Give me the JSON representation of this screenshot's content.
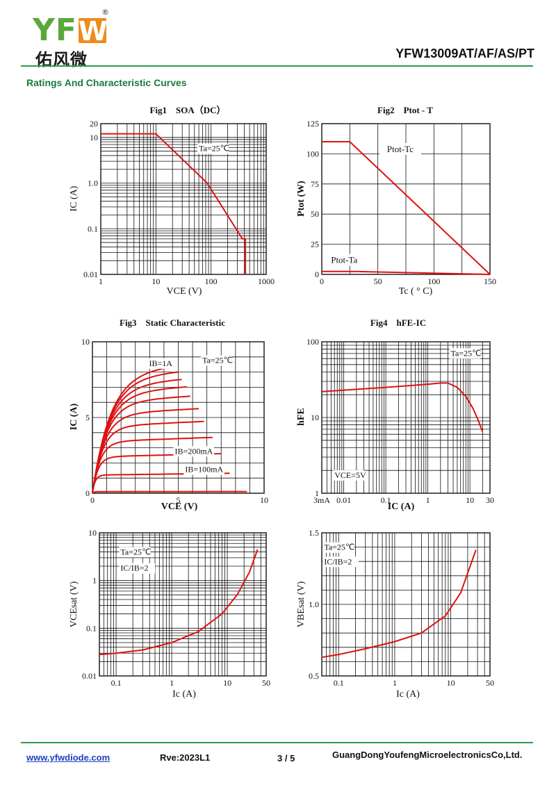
{
  "header": {
    "logo_text": "YFW",
    "logo_registered": "®",
    "logo_cn": "佑风微",
    "part_number": "YFW13009AT/AF/AS/PT",
    "section_title": "Ratings And Characteristic Curves"
  },
  "footer": {
    "website": "www.yfwdiode.com",
    "revision": "Rve:2023L1",
    "page": "3 / 5",
    "company": "GuangDongYoufengMicroelectronicsCo,Ltd."
  },
  "colors": {
    "curve": "#e01010",
    "grid": "#111111",
    "brand_green": "#2e9a4a",
    "brand_orange": "#f08a1c"
  },
  "chart_data": [
    {
      "id": "fig1",
      "type": "line",
      "title": "Fig1　SOA（DC）",
      "xlabel": "VCE (V)",
      "ylabel": "IC (A)",
      "xscale": "log",
      "yscale": "log",
      "xlim": [
        1,
        1000
      ],
      "ylim": [
        0.01,
        20
      ],
      "xticks": [
        1,
        10,
        100,
        1000
      ],
      "xtick_labels": [
        "1",
        "10",
        "100",
        "1000"
      ],
      "yticks": [
        0.01,
        0.1,
        1,
        10,
        20
      ],
      "ytick_labels": [
        "0.01",
        "0.1",
        "1.0",
        "10",
        "20"
      ],
      "annotations": [
        {
          "text": "Ta=25℃",
          "x": 60,
          "y": 5
        }
      ],
      "series": [
        {
          "x": [
            1,
            10,
            85,
            370,
            370,
            420,
            420
          ],
          "y": [
            12,
            12,
            1,
            0.06,
            0.06,
            0.06,
            0.01
          ]
        }
      ]
    },
    {
      "id": "fig2",
      "type": "line",
      "title": "Fig2　Ptot - T",
      "xlabel": "Tc ( ° C)",
      "ylabel": "Ptot (W)",
      "xscale": "linear",
      "yscale": "linear",
      "xlim": [
        0,
        150
      ],
      "ylim": [
        0,
        125
      ],
      "xticks": [
        0,
        50,
        100,
        150
      ],
      "xtick_labels": [
        "0",
        "50",
        "100",
        "150"
      ],
      "yticks": [
        0,
        25,
        50,
        75,
        100,
        125
      ],
      "ytick_labels": [
        "0",
        "25",
        "50",
        "75",
        "100",
        "125"
      ],
      "series": [
        {
          "name": "Ptot-Tc",
          "x": [
            0,
            25,
            150
          ],
          "y": [
            110,
            110,
            0
          ],
          "label_at": [
            70,
            102
          ]
        },
        {
          "name": "Ptot-Ta",
          "x": [
            0,
            25,
            150
          ],
          "y": [
            2.5,
            2.5,
            0
          ],
          "label_at": [
            20,
            10
          ]
        }
      ]
    },
    {
      "id": "fig3",
      "type": "line",
      "title": "Fig3　Static Characteristic",
      "xlabel": "VCE (V)",
      "ylabel": "IC (A)",
      "xscale": "linear",
      "yscale": "linear",
      "xlim": [
        0,
        10
      ],
      "ylim": [
        0,
        10
      ],
      "xticks": [
        0,
        5,
        10
      ],
      "xtick_labels": [
        "0",
        "5",
        "10"
      ],
      "yticks": [
        0,
        5,
        10
      ],
      "ytick_labels": [
        "0",
        "5",
        "10"
      ],
      "annotations": [
        {
          "text": "Ta=25℃",
          "x": 6.4,
          "y": 8.6
        },
        {
          "text": "IB=1A",
          "x": 3.3,
          "y": 8.4
        },
        {
          "text": "IB=200mA",
          "x": 4.8,
          "y": 2.6
        },
        {
          "text": "IB=100mA",
          "x": 5.4,
          "y": 1.4
        }
      ],
      "curves": [
        {
          "ib": "1A",
          "isat": 8.0,
          "vend": 4.7
        },
        {
          "ib": "",
          "isat": 7.6,
          "vend": 5.0
        },
        {
          "ib": "",
          "isat": 7.1,
          "vend": 5.2
        },
        {
          "ib": "",
          "isat": 6.6,
          "vend": 5.5
        },
        {
          "ib": "",
          "isat": 6.0,
          "vend": 5.7
        },
        {
          "ib": "",
          "isat": 5.2,
          "vend": 6.2
        },
        {
          "ib": "",
          "isat": 4.4,
          "vend": 6.5
        },
        {
          "ib": "",
          "isat": 3.4,
          "vend": 7.0
        },
        {
          "ib": "200mA",
          "isat": 2.4,
          "vend": 7.5
        },
        {
          "ib": "100mA",
          "isat": 1.2,
          "vend": 8.0
        },
        {
          "ib": "",
          "isat": 0.1,
          "vend": 9.0
        }
      ]
    },
    {
      "id": "fig4",
      "type": "line",
      "title": "Fig4　hFE-IC",
      "xlabel": "IC (A)",
      "ylabel": "hFE",
      "xscale": "log",
      "yscale": "log",
      "xlim": [
        0.003,
        30
      ],
      "ylim": [
        1,
        100
      ],
      "xticks": [
        0.003,
        0.01,
        0.1,
        1,
        10,
        30
      ],
      "xtick_labels": [
        "3mA",
        "0.01",
        "0.1",
        "1",
        "10",
        "30"
      ],
      "yticks": [
        1,
        10,
        100
      ],
      "ytick_labels": [
        "1",
        "10",
        "100"
      ],
      "annotations": [
        {
          "text": "Ta=25℃",
          "x": 3.5,
          "y": 65
        },
        {
          "text": "VCE=5V",
          "x": 0.006,
          "y": 1.6
        }
      ],
      "series": [
        {
          "x": [
            0.003,
            0.01,
            0.1,
            1,
            2,
            3,
            5,
            8,
            12,
            16,
            20
          ],
          "y": [
            22,
            23,
            25,
            27.5,
            28.5,
            28.5,
            25,
            19,
            13,
            9,
            6.5
          ]
        }
      ]
    },
    {
      "id": "fig5",
      "type": "line",
      "title": "",
      "xlabel": "Ic (A)",
      "ylabel": "VCEsat (V)",
      "xscale": "log",
      "yscale": "log",
      "xlim": [
        0.05,
        50
      ],
      "ylim": [
        0.01,
        10
      ],
      "xticks": [
        0.1,
        1,
        10,
        50
      ],
      "xtick_labels": [
        "0.1",
        "1",
        "10",
        "50"
      ],
      "yticks": [
        0.01,
        0.1,
        1,
        10
      ],
      "ytick_labels": [
        "0.01",
        "0.1",
        "1",
        "10"
      ],
      "annotations": [
        {
          "text": "Ta=25℃",
          "x": 0.12,
          "y": 3.5
        },
        {
          "text": "IC/IB=2",
          "x": 0.12,
          "y": 1.6
        }
      ],
      "series": [
        {
          "x": [
            0.05,
            0.1,
            0.3,
            1,
            3,
            8,
            15,
            25,
            35
          ],
          "y": [
            0.028,
            0.03,
            0.035,
            0.05,
            0.085,
            0.2,
            0.5,
            1.5,
            4.5
          ]
        }
      ]
    },
    {
      "id": "fig6",
      "type": "line",
      "title": "",
      "xlabel": "Ic (A)",
      "ylabel": "VBEsat (V)",
      "xscale": "log",
      "yscale": "linear",
      "xlim": [
        0.05,
        50
      ],
      "ylim": [
        0.5,
        1.5
      ],
      "xticks": [
        0.1,
        1,
        10,
        50
      ],
      "xtick_labels": [
        "0.1",
        "1",
        "10",
        "50"
      ],
      "yticks": [
        0.5,
        1.0,
        1.5
      ],
      "ytick_labels": [
        "0.5",
        "1.0",
        "1.5"
      ],
      "annotations": [
        {
          "text": "Ta=25℃",
          "x": 0.055,
          "y": 1.38
        },
        {
          "text": "IC/IB=2",
          "x": 0.055,
          "y": 1.28
        }
      ],
      "series": [
        {
          "x": [
            0.05,
            0.1,
            0.3,
            1,
            3,
            8,
            15,
            28
          ],
          "y": [
            0.63,
            0.65,
            0.69,
            0.74,
            0.8,
            0.92,
            1.08,
            1.38
          ]
        }
      ]
    }
  ]
}
